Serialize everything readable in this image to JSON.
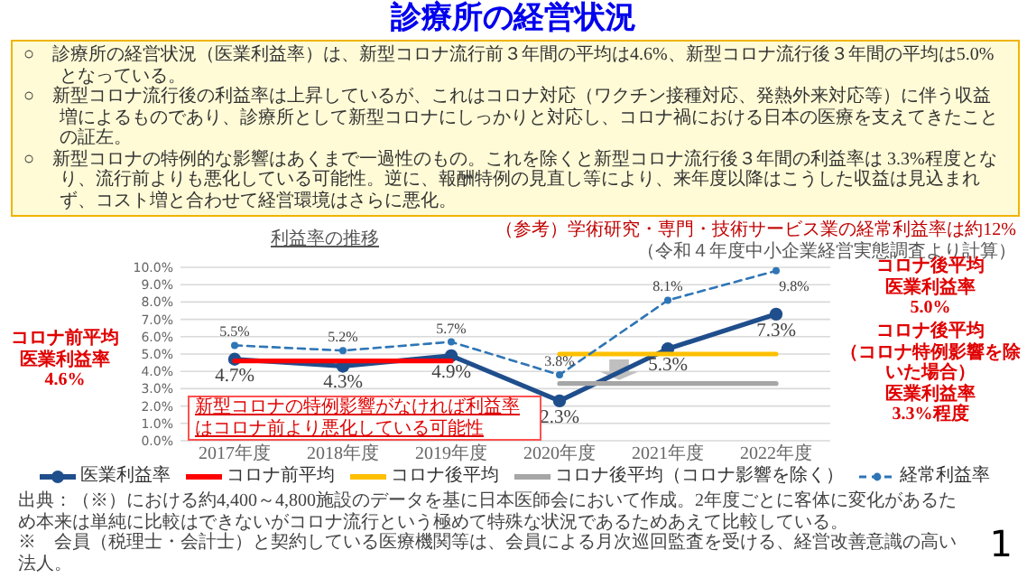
{
  "chart_data": {
    "type": "line",
    "title": "診療所の経営状況",
    "subtitle": "利益率の推移",
    "categories": [
      "2017年度",
      "2018年度",
      "2019年度",
      "2020年度",
      "2021年度",
      "2022年度"
    ],
    "series": [
      {
        "name": "医業利益率",
        "color": "#1f4e8c",
        "values": [
          4.7,
          4.3,
          4.9,
          2.3,
          5.3,
          7.3
        ],
        "value_labels": [
          "4.7%",
          "4.3%",
          "4.9%",
          "2.3%",
          "5.3%",
          "7.3%"
        ],
        "marker": "circle",
        "line_style": "solid"
      },
      {
        "name": "コロナ前平均",
        "color": "#ff0000",
        "values": [
          4.6,
          4.6,
          4.6,
          null,
          null,
          null
        ],
        "marker": "none",
        "line_style": "solid"
      },
      {
        "name": "コロナ後平均",
        "color": "#ffc000",
        "values": [
          null,
          null,
          null,
          5.0,
          5.0,
          5.0
        ],
        "marker": "none",
        "line_style": "solid"
      },
      {
        "name": "コロナ後平均（コロナ影響を除く）",
        "color": "#a6a6a6",
        "values": [
          null,
          null,
          null,
          3.3,
          3.3,
          3.3
        ],
        "marker": "none",
        "line_style": "solid"
      },
      {
        "name": "経常利益率",
        "color": "#2e75b6",
        "values": [
          5.5,
          5.2,
          5.7,
          3.8,
          8.1,
          9.8
        ],
        "value_labels": [
          "5.5%",
          "5.2%",
          "5.7%",
          "3.8%",
          "8.1%",
          "9.8%"
        ],
        "marker": "circle",
        "line_style": "dashed"
      }
    ],
    "ylim": [
      0,
      10
    ],
    "yticks": [
      {
        "value": 0,
        "label": "0.0%"
      },
      {
        "value": 1,
        "label": "1.0%"
      },
      {
        "value": 2,
        "label": "2.0%"
      },
      {
        "value": 3,
        "label": "3.0%"
      },
      {
        "value": 4,
        "label": "4.0%"
      },
      {
        "value": 5,
        "label": "5.0%"
      },
      {
        "value": 6,
        "label": "6.0%"
      },
      {
        "value": 7,
        "label": "7.0%"
      },
      {
        "value": 8,
        "label": "8.0%"
      },
      {
        "value": 9,
        "label": "9.0%"
      },
      {
        "value": 10,
        "label": "10.0%"
      }
    ],
    "grid": "y",
    "legend": "bottom",
    "annotations": [
      "○　診療所の経営状況（医業利益率）は、新型コロナ流行前３年間の平均は4.6%、新型コロナ流行後３年間の平均は5.0%となっている。",
      "○　新型コロナ流行後の利益率は上昇しているが、これはコロナ対応（ワクチン接種対応、発熱外来対応等）に伴う収益増によるものであり、診療所として新型コロナにしっかりと対応し、コロナ禍における日本の医療を支えてきたことの証左。",
      "○　新型コロナの特例的な影響はあくまで一過性のもの。これを除くと新型コロナ流行後３年間の利益率は 3.3%程度となり、流行前よりも悪化している可能性。逆に、報酬特例の見直し等により、来年度以降はこうした収益は見込まれず、コスト増と合わせて経営環境はさらに悪化。",
      "（参考）学術研究・専門・技術サービス業の経常利益率は約12%",
      "（令和４年度中小企業経営実態調査より計算）",
      "コロナ前平均",
      "医業利益率",
      "4.6%",
      "コロナ後平均",
      "医業利益率",
      "5.0%",
      "コロナ後平均",
      "（コロナ特例影響を除いた場合）",
      "医業利益率",
      "3.3%程度",
      "新型コロナの特例影響がなければ利益率はコロナ前より悪化している可能性",
      "出典：（※）における約4,400～4,800施設のデータを基に日本医師会において作成。2年度ごとに客体に変化があるため本来は単純に比較はできないがコロナ流行という極めて特殊な状況であるためあえて比較している。",
      "※　会員（税理士・会計士）と契約している医療機関等は、会員による月次巡回監査を受ける、経営改善意識の高い法人。",
      "1"
    ]
  }
}
